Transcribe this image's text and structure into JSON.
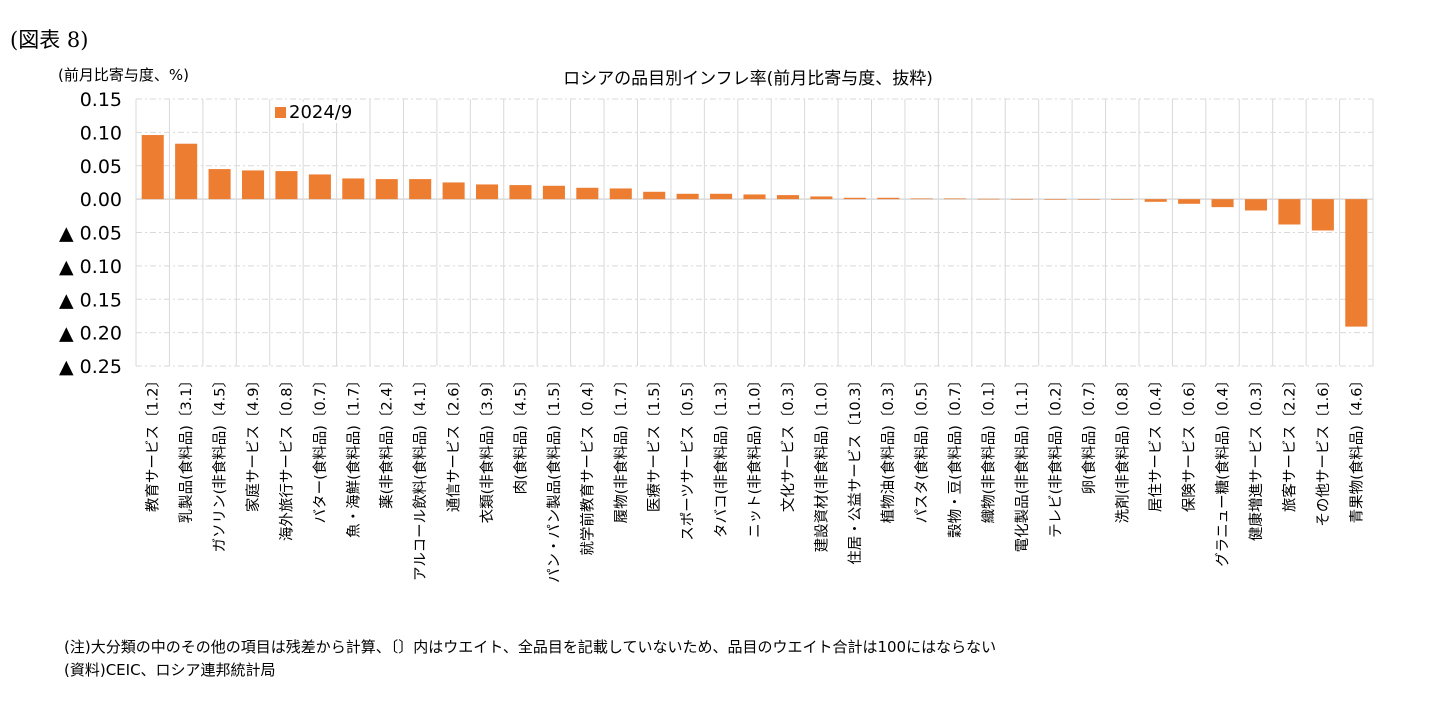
{
  "figure_label": "(図表 8)",
  "unit_label": "(前月比寄与度、%)",
  "notes": {
    "note": "(注)大分類の中のその他の項目は残差から計算、〔〕内はウエイト、全品目を記載していないため、品目のウエイト合計は100にはならない",
    "source": "(資料)CEIC、ロシア連邦統計局"
  },
  "chart_data": {
    "type": "bar",
    "title": "ロシアの品目別インフレ率(前月比寄与度、抜粋)",
    "xlabel": "",
    "ylabel": "(前月比寄与度、%)",
    "ylim": [
      -0.25,
      0.15
    ],
    "yticks": [
      0.15,
      0.1,
      0.05,
      0.0,
      -0.05,
      -0.1,
      -0.15,
      -0.2,
      -0.25
    ],
    "ytick_labels": [
      "0.15",
      "0.10",
      "0.05",
      "0.00",
      "▲ 0.05",
      "▲ 0.10",
      "▲ 0.15",
      "▲ 0.20",
      "▲ 0.25"
    ],
    "grid": true,
    "legend_position": "top-left",
    "colors": {
      "bar": "#ED7D31",
      "grid": "#D9D9D9"
    },
    "categories": [
      "教育サービス〔1.2〕",
      "乳製品(食料品)〔3.1〕",
      "ガソリン(非食料品)〔4.5〕",
      "家庭サービス〔4.9〕",
      "海外旅行サービス〔0.8〕",
      "バター(食料品)〔0.7〕",
      "魚・海鮮(食料品)〔1.7〕",
      "薬(非食料品)〔2.4〕",
      "アルコール飲料(食料品)〔4.1〕",
      "通信サービス〔2.6〕",
      "衣類(非食料品)〔3.9〕",
      "肉(食料品)〔4.5〕",
      "パン・パン製品(食料品)〔1.5〕",
      "就学前教育サービス〔0.4〕",
      "履物(非食料品)〔1.7〕",
      "医療サービス〔1.5〕",
      "スポーツサービス〔0.5〕",
      "タバコ(非食料品)〔1.3〕",
      "ニット(非食料品)〔1.0〕",
      "文化サービス〔0.3〕",
      "建設資材(非食料品)〔1.0〕",
      "住居・公益サービス〔10.3〕",
      "植物油(食料品)〔0.3〕",
      "パスタ(食料品)〔0.5〕",
      "穀物・豆(食料品)〔0.7〕",
      "織物(非食料品)〔0.1〕",
      "電化製品(非食料品)〔1.1〕",
      "テレビ(非食料品)〔0.2〕",
      "卵(食料品)〔0.7〕",
      "洗剤(非食料品)〔0.8〕",
      "居住サービス〔0.4〕",
      "保険サービス〔0.6〕",
      "グラニュー糖(食料品)〔0.4〕",
      "健康増進サービス〔0.3〕",
      "旅客サービス〔2.2〕",
      "その他サービス〔1.6〕",
      "青果物(食料品)〔4.6〕"
    ],
    "series": [
      {
        "name": "2024/9",
        "values": [
          0.096,
          0.083,
          0.045,
          0.043,
          0.042,
          0.037,
          0.031,
          0.03,
          0.03,
          0.025,
          0.022,
          0.021,
          0.02,
          0.017,
          0.016,
          0.011,
          0.008,
          0.008,
          0.007,
          0.006,
          0.004,
          0.002,
          0.002,
          0.001,
          0.001,
          0.0005,
          0.0003,
          -0.0005,
          -0.0008,
          -0.0008,
          -0.004,
          -0.007,
          -0.012,
          -0.017,
          -0.038,
          -0.047,
          -0.191
        ]
      }
    ]
  }
}
